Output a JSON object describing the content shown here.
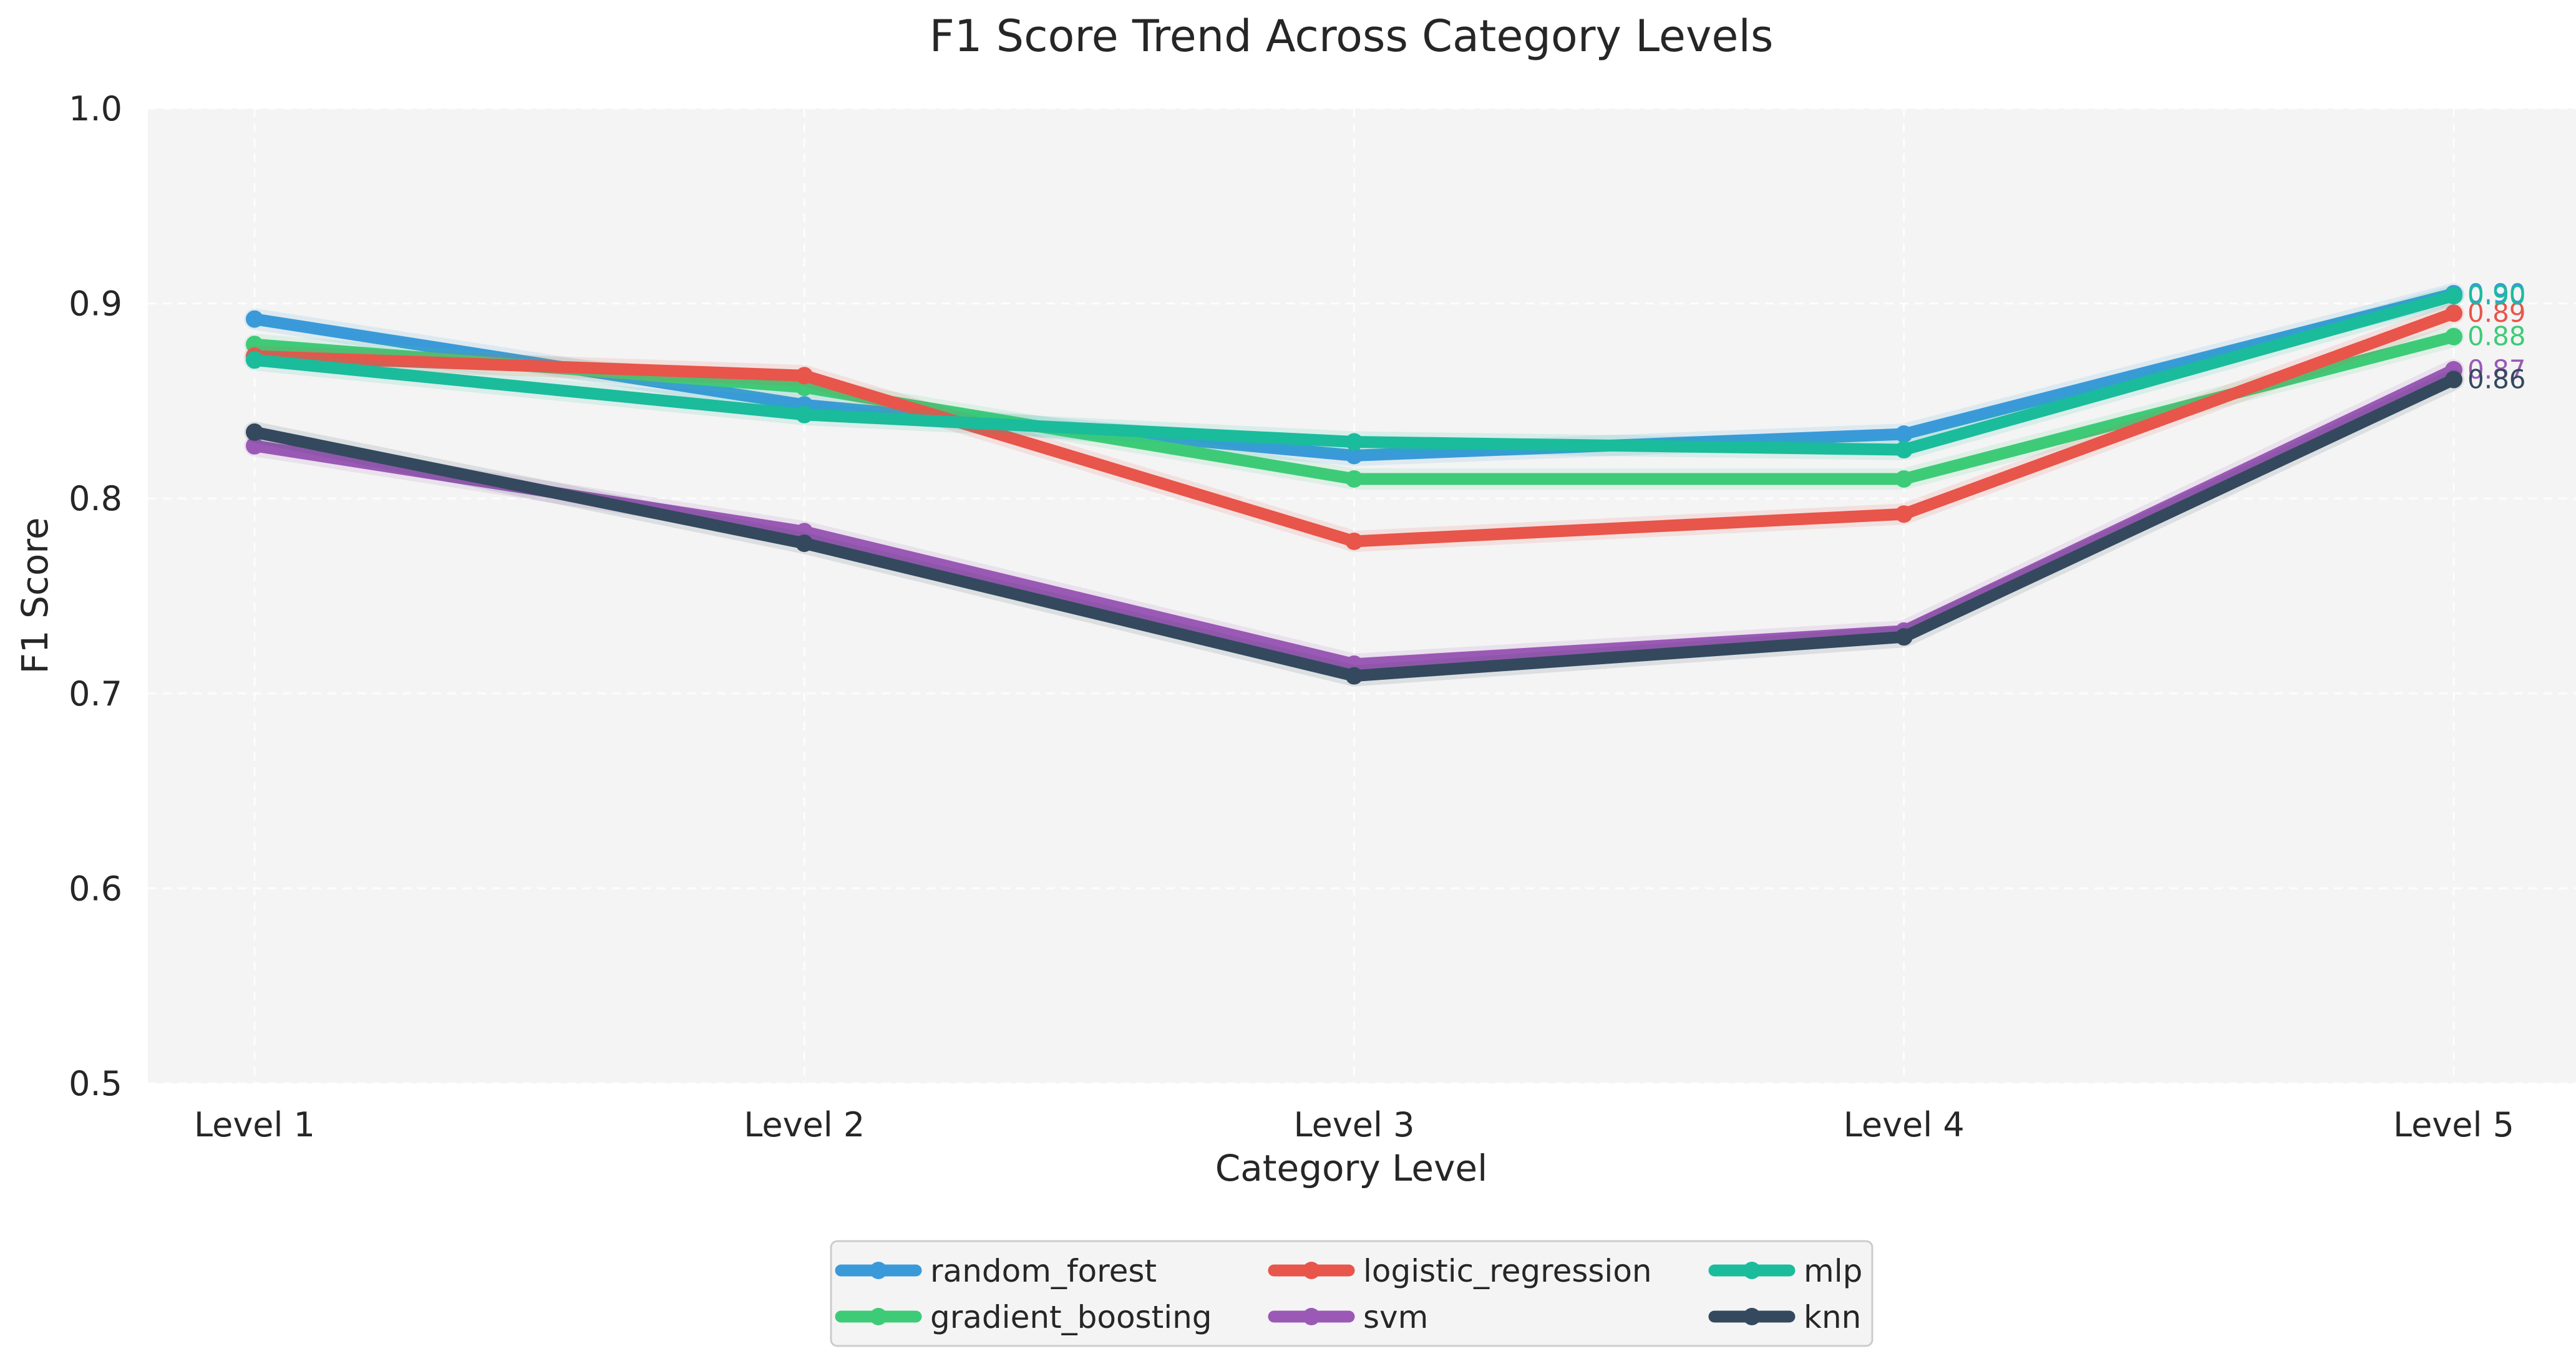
{
  "chart_data": {
    "type": "line",
    "title": "F1 Score Trend Across Category Levels",
    "xlabel": "Category Level",
    "ylabel": "F1 Score",
    "categories": [
      "Level 1",
      "Level 2",
      "Level 3",
      "Level 4",
      "Level 5"
    ],
    "ylim": [
      0.5,
      1.0
    ],
    "yticks": [
      0.5,
      0.6,
      0.7,
      0.8,
      0.9,
      1.0
    ],
    "grid": true,
    "legend_position": "bottom-center",
    "series": [
      {
        "name": "random_forest",
        "color": "#3a9ad9",
        "values": [
          0.892,
          0.848,
          0.822,
          0.833,
          0.905
        ],
        "end_label": "0.90"
      },
      {
        "name": "gradient_boosting",
        "color": "#3ecb78",
        "values": [
          0.879,
          0.857,
          0.81,
          0.81,
          0.883
        ],
        "end_label": "0.88"
      },
      {
        "name": "logistic_regression",
        "color": "#e8554a",
        "values": [
          0.873,
          0.863,
          0.778,
          0.792,
          0.895
        ],
        "end_label": "0.89"
      },
      {
        "name": "svm",
        "color": "#9b59b6",
        "values": [
          0.827,
          0.783,
          0.715,
          0.732,
          0.866
        ],
        "end_label": "0.87"
      },
      {
        "name": "mlp",
        "color": "#1abc9c",
        "values": [
          0.871,
          0.843,
          0.829,
          0.825,
          0.904
        ],
        "end_label": "0.90"
      },
      {
        "name": "knn",
        "color": "#34495e",
        "values": [
          0.834,
          0.777,
          0.709,
          0.729,
          0.861
        ],
        "end_label": "0.86"
      }
    ]
  }
}
